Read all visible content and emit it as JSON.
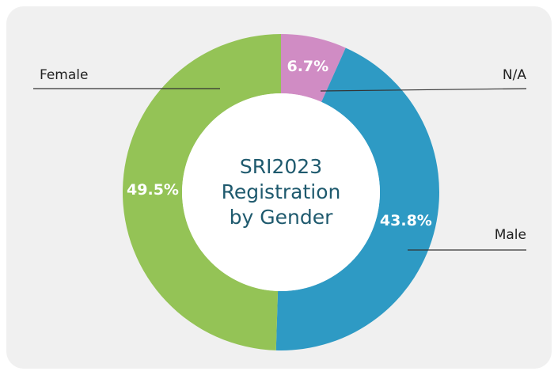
{
  "chart_data": {
    "type": "donut",
    "title": "SRI2023 Registration by Gender",
    "categories": [
      "N/A",
      "Male",
      "Female"
    ],
    "values": [
      6.7,
      43.8,
      49.5
    ],
    "value_labels": [
      "6.7%",
      "43.8%",
      "49.5%"
    ],
    "colors": [
      "#d08cc4",
      "#2e9ac4",
      "#94c356"
    ]
  }
}
